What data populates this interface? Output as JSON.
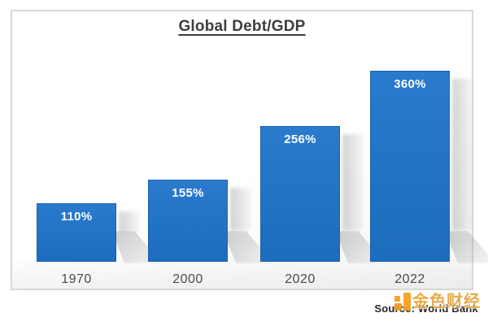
{
  "chart_data": {
    "type": "bar",
    "title": "Global Debt/GDP",
    "categories": [
      "1970",
      "2000",
      "2020",
      "2022"
    ],
    "values": [
      110,
      155,
      256,
      360
    ],
    "value_labels": [
      "110%",
      "155%",
      "256%",
      "360%"
    ],
    "unit": "%",
    "ylim": [
      0,
      360
    ],
    "grid": false,
    "legend": false,
    "bar_color": "#2173c4",
    "bar_border_color": "#1c63ae",
    "value_label_color": "#ffffff",
    "axis_label_color": "#4a4a4a",
    "title_color": "#3d3d3d",
    "source_note": "Source: World Bank"
  },
  "watermark": {
    "text": "金色财经",
    "color": "#e9a43c",
    "icon": "jinse-logo-icon"
  }
}
